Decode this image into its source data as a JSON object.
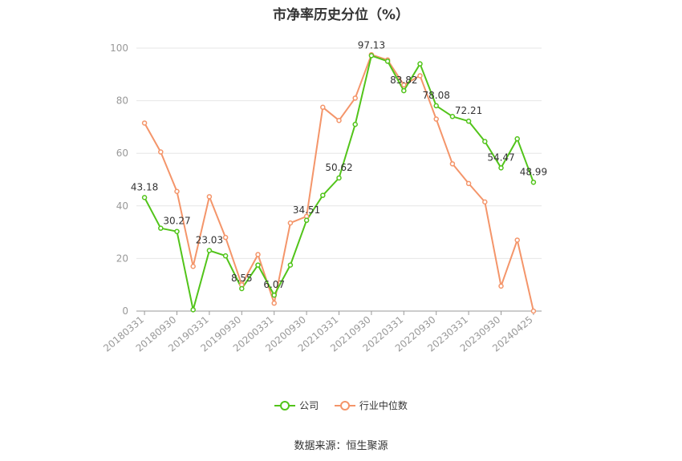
{
  "title": "市净率历史分位（%）",
  "source": "数据来源：恒生聚源",
  "chart_data": {
    "type": "line",
    "title": "市净率历史分位（%）",
    "ylim": [
      0,
      100
    ],
    "y_ticks": [
      "0",
      "20",
      "40",
      "60",
      "80",
      "100"
    ],
    "x": [
      "20180331",
      "20180630",
      "20180930",
      "20181231",
      "20190331",
      "20190630",
      "20190930",
      "20191231",
      "20200331",
      "20200630",
      "20200930",
      "20201231",
      "20210331",
      "20210630",
      "20210930",
      "20211231",
      "20220331",
      "20220630",
      "20220930",
      "20221231",
      "20230331",
      "20230630",
      "20230930",
      "20231231",
      "20240425"
    ],
    "x_tick_labels": [
      "20180331",
      "20180930",
      "20190331",
      "20190930",
      "20200331",
      "20200930",
      "20210331",
      "20210930",
      "20220331",
      "20220930",
      "20230331",
      "20230930",
      "20240425"
    ],
    "series": [
      {
        "name": "公司",
        "color": "#52c41a",
        "values": [
          43.18,
          31.5,
          30.27,
          0.5,
          23.03,
          21.0,
          8.55,
          17.5,
          6.07,
          17.5,
          34.51,
          44.0,
          50.62,
          71.0,
          97.13,
          95.0,
          83.82,
          94.0,
          78.08,
          74.0,
          72.21,
          64.5,
          54.47,
          65.5,
          48.99
        ],
        "labels": {
          "0": "43.18",
          "2": "30.27",
          "4": "23.03",
          "6": "8.55",
          "8": "6.07",
          "10": "34.51",
          "12": "50.62",
          "14": "97.13",
          "16": "83.82",
          "18": "78.08",
          "20": "72.21",
          "22": "54.47",
          "24": "48.99"
        }
      },
      {
        "name": "行业中位数",
        "color": "#f4956a",
        "values": [
          71.5,
          60.5,
          45.5,
          17.0,
          43.5,
          28.0,
          10.0,
          21.5,
          3.0,
          33.5,
          36.0,
          77.5,
          72.5,
          81.0,
          97.5,
          95.5,
          86.0,
          89.5,
          73.0,
          56.0,
          48.5,
          41.5,
          9.5,
          27.0,
          0.0
        ]
      }
    ],
    "legend": "bottom-center",
    "grid": true
  }
}
